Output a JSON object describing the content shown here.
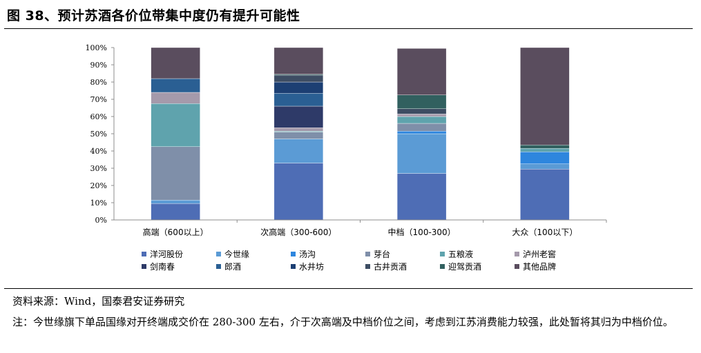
{
  "header": {
    "title": "图 38、预计苏酒各价位带集中度仍有提升可能性"
  },
  "footer": {
    "source": "资料来源：Wind，国泰君安证券研究",
    "note": "注：今世缘旗下单品国缘对开终端成交价在 280-300 左右，介于次高端及中档价位之间，考虑到江苏消费能力较强，此处暂将其归为中档价位。"
  },
  "chart_data": {
    "type": "bar",
    "stacked": true,
    "title": "",
    "xlabel": "",
    "ylabel": "",
    "ylim": [
      0,
      100
    ],
    "yticks": [
      "0%",
      "10%",
      "20%",
      "30%",
      "40%",
      "50%",
      "60%",
      "70%",
      "80%",
      "90%",
      "100%"
    ],
    "categories": [
      "高端（600以上）",
      "次高端（300-600）",
      "中档（100-300）",
      "大众（100以下）"
    ],
    "legend_position": "bottom",
    "series": [
      {
        "name": "洋河股份",
        "color": "#4e6db5",
        "values": [
          9.5,
          33,
          27,
          29.5
        ]
      },
      {
        "name": "今世缘",
        "color": "#5b9bd5",
        "values": [
          2,
          14,
          23,
          3
        ]
      },
      {
        "name": "汤沟",
        "color": "#2e86de",
        "values": [
          0,
          0,
          1.5,
          7
        ]
      },
      {
        "name": "芽台",
        "color": "#7f8fa9",
        "values": [
          31,
          4,
          4.5,
          0
        ]
      },
      {
        "name": "五粮液",
        "color": "#5fa3ad",
        "values": [
          25,
          0.5,
          4,
          2
        ]
      },
      {
        "name": "泸州老窖",
        "color": "#a59aab",
        "values": [
          6.5,
          2,
          1.5,
          0
        ]
      },
      {
        "name": "剑南春",
        "color": "#2e3a68",
        "values": [
          0,
          12.5,
          0,
          0
        ]
      },
      {
        "name": "郎酒",
        "color": "#2a5f93",
        "values": [
          8,
          7.5,
          0,
          0
        ]
      },
      {
        "name": "水井坊",
        "color": "#1c3f73",
        "values": [
          0,
          6.5,
          0,
          0
        ]
      },
      {
        "name": "古井贡酒",
        "color": "#3d4d63",
        "values": [
          0,
          4,
          3,
          0
        ]
      },
      {
        "name": "迎驾贡酒",
        "color": "#31605f",
        "values": [
          0,
          0.5,
          8,
          2
        ]
      },
      {
        "name": "其他品牌",
        "color": "#5a4d5e",
        "values": [
          18,
          15.5,
          27,
          56.5
        ]
      }
    ]
  }
}
